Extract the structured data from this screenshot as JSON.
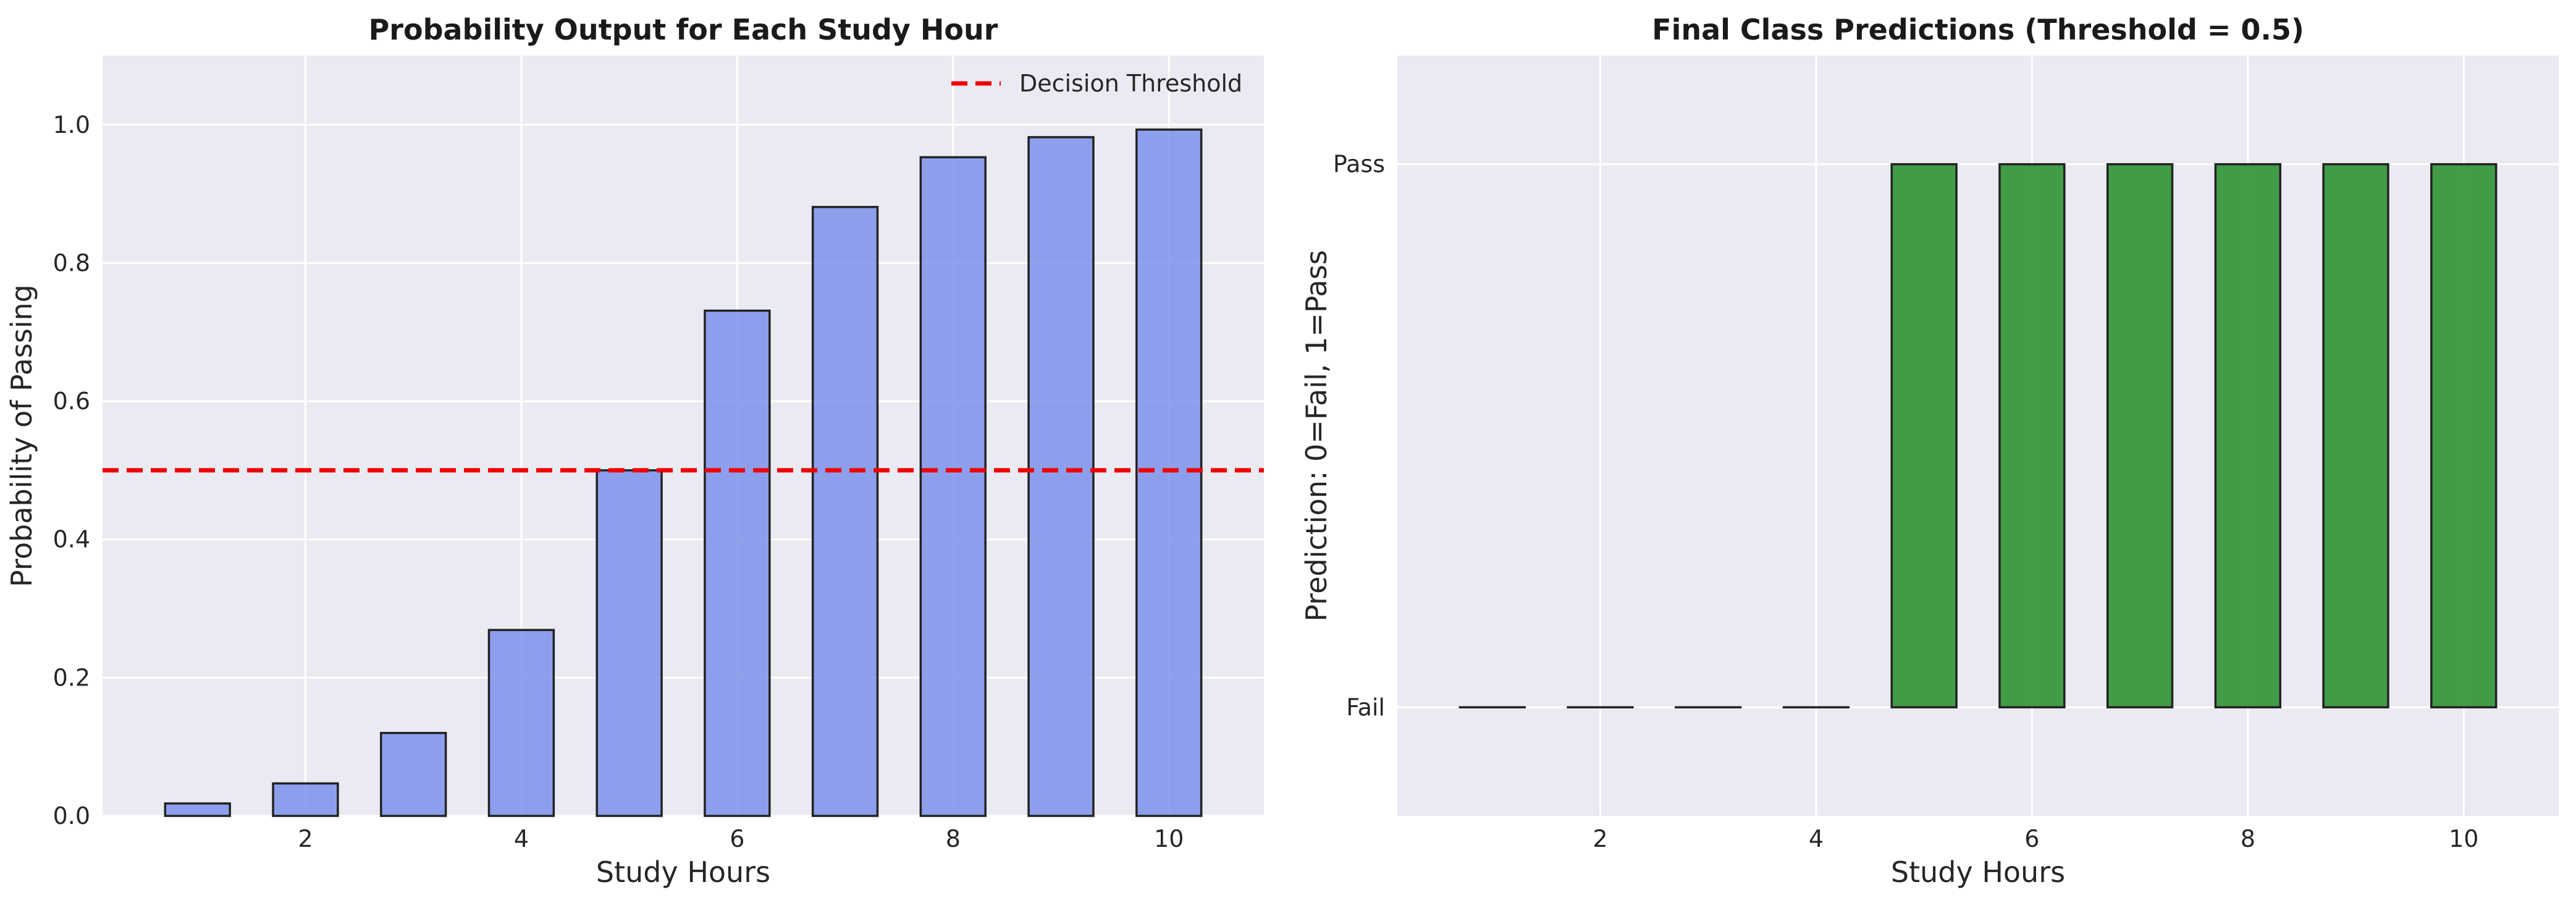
{
  "chart_data": [
    {
      "type": "bar",
      "title": "Probability Output for Each Study Hour",
      "xlabel": "Study Hours",
      "ylabel": "Probability of Passing",
      "x": [
        1,
        2,
        3,
        4,
        5,
        6,
        7,
        8,
        9,
        10
      ],
      "values": [
        0.018,
        0.047,
        0.12,
        0.269,
        0.5,
        0.731,
        0.881,
        0.953,
        0.982,
        0.993
      ],
      "xlim": [
        0.12,
        10.88
      ],
      "ylim": [
        0,
        1.1
      ],
      "xticks": [
        2,
        4,
        6,
        8,
        10
      ],
      "xtick_labels": [
        "2",
        "4",
        "6",
        "8",
        "10"
      ],
      "yticks": [
        0.0,
        0.2,
        0.4,
        0.6,
        0.8,
        1.0
      ],
      "ytick_labels": [
        "0.0",
        "0.2",
        "0.4",
        "0.6",
        "0.8",
        "1.0"
      ],
      "threshold": 0.5,
      "legend": [
        {
          "label": "Decision Threshold",
          "style": "dashed",
          "color": "#ee0000"
        }
      ],
      "legend_position": "top-right",
      "grid": true,
      "bar_color": "#7d92eb",
      "bar_edge_color": "#222222"
    },
    {
      "type": "bar",
      "title": "Final Class Predictions (Threshold = 0.5)",
      "xlabel": "Study Hours",
      "ylabel": "Prediction: 0=Fail, 1=Pass",
      "x": [
        1,
        2,
        3,
        4,
        5,
        6,
        7,
        8,
        9,
        10
      ],
      "values": [
        0,
        0,
        0,
        0,
        1,
        1,
        1,
        1,
        1,
        1
      ],
      "xlim": [
        0.12,
        10.88
      ],
      "ylim": [
        -0.2,
        1.2
      ],
      "xticks": [
        2,
        4,
        6,
        8,
        10
      ],
      "xtick_labels": [
        "2",
        "4",
        "6",
        "8",
        "10"
      ],
      "yticks": [
        0,
        1
      ],
      "ytick_labels": [
        "Fail",
        "Pass"
      ],
      "grid": true,
      "bar_color": "#2e9433",
      "bar_edge_color": "#222222"
    }
  ]
}
